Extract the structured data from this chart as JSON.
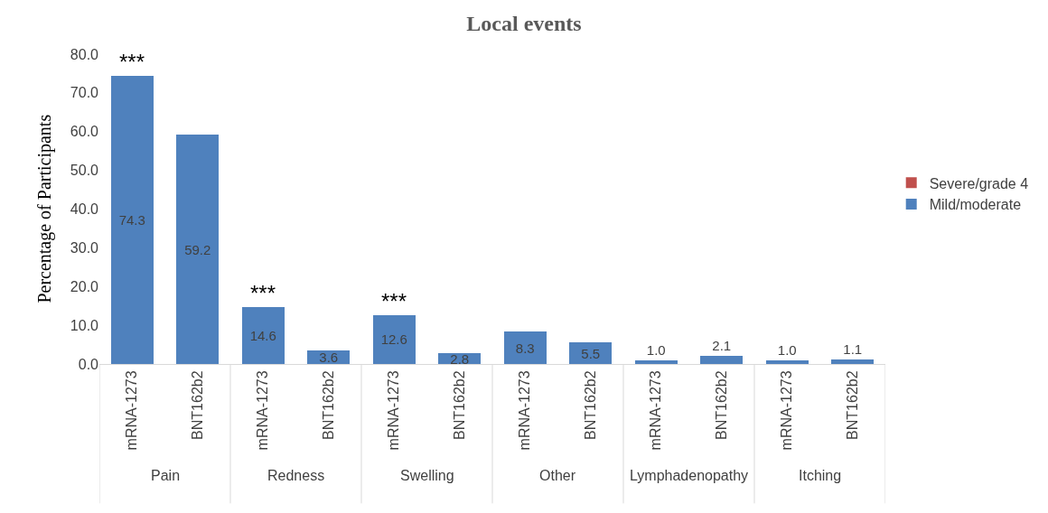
{
  "chart_data": {
    "type": "bar",
    "title": "Local events",
    "ylabel": "Percentage of Participants",
    "stacked": true,
    "categories": [
      "mRNA-1273",
      "BNT162b2",
      "mRNA-1273",
      "BNT162b2",
      "mRNA-1273",
      "BNT162b2",
      "mRNA-1273",
      "BNT162b2",
      "mRNA-1273",
      "BNT162b2",
      "mRNA-1273",
      "BNT162b2"
    ],
    "series": [
      {
        "name": "Mild/moderate",
        "color": "#4f81bd",
        "values": [
          74.3,
          59.2,
          14.6,
          3.6,
          12.6,
          2.8,
          8.3,
          5.5,
          1.0,
          2.1,
          1.0,
          1.1
        ],
        "value_labels": [
          "74.3",
          "59.2",
          "14.6",
          "3.6",
          "12.6",
          "2.8",
          "8.3",
          "5.5",
          "1.0",
          "2.1",
          "1.0",
          "1.1"
        ]
      },
      {
        "name": "Severe/grade 4",
        "color": "#c0504d",
        "values": [
          0,
          0,
          0,
          0,
          0,
          0,
          0,
          0,
          0,
          0,
          0,
          0
        ]
      }
    ],
    "ylim": [
      0,
      80
    ],
    "yticks": [
      {
        "value": 0,
        "label": "0.0"
      },
      {
        "value": 10,
        "label": "10.0"
      },
      {
        "value": 20,
        "label": "20.0"
      },
      {
        "value": 30,
        "label": "30.0"
      },
      {
        "value": 40,
        "label": "40.0"
      },
      {
        "value": 50,
        "label": "50.0"
      },
      {
        "value": 60,
        "label": "60.0"
      },
      {
        "value": 70,
        "label": "70.0"
      },
      {
        "value": 80,
        "label": "80.0"
      }
    ],
    "annotations": [
      "Pain",
      "Redness",
      "Swelling",
      "Other",
      "Lymphadenopathy",
      "Itching",
      {
        "text": "***",
        "y": 74.3
      },
      {
        "text": "***",
        "y": 14.6
      },
      {
        "text": "***",
        "y": 12.6
      }
    ],
    "grid": false,
    "legend": "right"
  }
}
